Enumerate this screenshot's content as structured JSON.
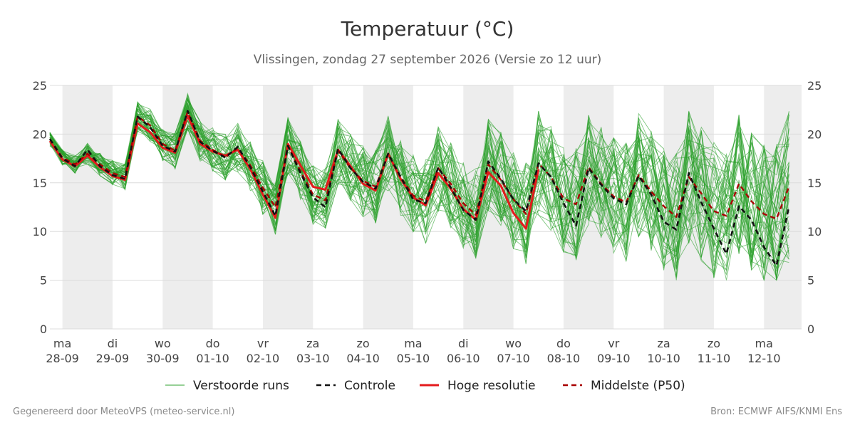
{
  "footer": {
    "left": "Gegenereerd door MeteoVPS (meteo-service.nl)",
    "right": "Bron: ECMWF AIFS/KNMI Ens"
  },
  "colors": {
    "perturbed": "#2ca02c",
    "control": "#111111",
    "high_res": "#e41a1c",
    "median": "#a80000",
    "weekend_band": "#ededed",
    "grid": "#dcdcdc"
  },
  "chart_data": {
    "type": "line",
    "title": "Temperatuur (°C)",
    "subtitle": "Vlissingen, zondag 27 september 2026 (Versie zo 12 uur)",
    "ylim": [
      0,
      25
    ],
    "yticks": [
      0,
      5,
      10,
      15,
      20,
      25
    ],
    "grid": "horizontal",
    "legend_position": "bottom",
    "x_start": "2026-09-27 18:00",
    "x_end": "2026-10-12 18:00",
    "x_step_hours": 6,
    "shaded_days": [
      "2026-09-28",
      "2026-09-30",
      "2026-10-02",
      "2026-10-04",
      "2026-10-06",
      "2026-10-08",
      "2026-10-10",
      "2026-10-12"
    ],
    "xticks": [
      {
        "date": "2026-09-28",
        "day": "ma",
        "label": "28-09"
      },
      {
        "date": "2026-09-29",
        "day": "di",
        "label": "29-09"
      },
      {
        "date": "2026-09-30",
        "day": "wo",
        "label": "30-09"
      },
      {
        "date": "2026-10-01",
        "day": "do",
        "label": "01-10"
      },
      {
        "date": "2026-10-02",
        "day": "vr",
        "label": "02-10"
      },
      {
        "date": "2026-10-03",
        "day": "za",
        "label": "03-10"
      },
      {
        "date": "2026-10-04",
        "day": "zo",
        "label": "04-10"
      },
      {
        "date": "2026-10-05",
        "day": "ma",
        "label": "05-10"
      },
      {
        "date": "2026-10-06",
        "day": "di",
        "label": "06-10"
      },
      {
        "date": "2026-10-07",
        "day": "wo",
        "label": "07-10"
      },
      {
        "date": "2026-10-08",
        "day": "do",
        "label": "08-10"
      },
      {
        "date": "2026-10-09",
        "day": "vr",
        "label": "09-10"
      },
      {
        "date": "2026-10-10",
        "day": "za",
        "label": "10-10"
      },
      {
        "date": "2026-10-11",
        "day": "zo",
        "label": "11-10"
      },
      {
        "date": "2026-10-12",
        "day": "ma",
        "label": "12-10"
      }
    ],
    "series": [
      {
        "name": "Controle",
        "style": "dashed",
        "values": [
          19.5,
          17.5,
          16.7,
          18.4,
          16.7,
          15.8,
          15.4,
          21.8,
          20.7,
          18.8,
          18.2,
          22.4,
          19.2,
          18.3,
          17.6,
          18.7,
          16.6,
          14.1,
          11.6,
          18.8,
          16.0,
          13.5,
          12.5,
          18.5,
          16.5,
          15.1,
          14.4,
          18.0,
          15.6,
          13.3,
          12.9,
          16.6,
          14.5,
          12.2,
          11.2,
          17.2,
          15.4,
          13.3,
          12.1,
          17.0,
          15.6,
          12.9,
          10.6,
          16.5,
          14.8,
          13.4,
          12.8,
          15.7,
          13.8,
          11.0,
          10.2,
          16.0,
          13.0,
          10.3,
          7.7,
          12.6,
          11.2,
          8.4,
          6.5,
          12.6
        ]
      },
      {
        "name": "Hoge resolutie",
        "style": "solid",
        "values": [
          19.3,
          17.4,
          16.7,
          17.8,
          16.6,
          15.7,
          15.3,
          21.1,
          20.2,
          18.6,
          18.1,
          21.9,
          19.0,
          18.2,
          17.8,
          18.4,
          16.4,
          13.8,
          11.4,
          19.0,
          16.8,
          14.6,
          14.3,
          18.4,
          16.7,
          14.9,
          14.2,
          18.0,
          15.4,
          13.5,
          12.7,
          16.0,
          14.4,
          12.3,
          11.2,
          16.1,
          14.7,
          11.9,
          10.3,
          16.4
        ]
      },
      {
        "name": "Middelste (P50)",
        "style": "dashed",
        "values": [
          19.5,
          17.6,
          16.9,
          18.0,
          16.9,
          16.0,
          15.6,
          21.8,
          20.9,
          19.0,
          18.3,
          22.3,
          19.3,
          18.4,
          17.6,
          18.6,
          16.8,
          14.5,
          12.5,
          18.8,
          16.2,
          13.8,
          13.2,
          18.3,
          16.5,
          15.2,
          14.6,
          18.0,
          15.6,
          13.7,
          13.1,
          16.5,
          14.9,
          12.9,
          11.7,
          16.9,
          15.3,
          13.3,
          11.8,
          17.0,
          15.6,
          13.4,
          12.8,
          16.6,
          14.9,
          13.6,
          13.0,
          15.8,
          14.1,
          12.6,
          11.5,
          15.6,
          13.9,
          12.1,
          11.6,
          14.9,
          13.1,
          11.8,
          11.3,
          14.6
        ]
      }
    ],
    "ensemble": {
      "name": "Verstoorde runs",
      "members": 50,
      "min_c": 5.0,
      "max_c": 24.9
    }
  }
}
